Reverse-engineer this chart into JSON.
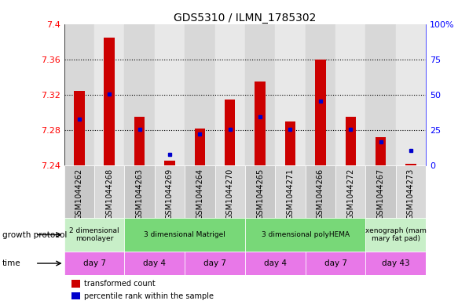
{
  "title": "GDS5310 / ILMN_1785302",
  "samples": [
    "GSM1044262",
    "GSM1044268",
    "GSM1044263",
    "GSM1044269",
    "GSM1044264",
    "GSM1044270",
    "GSM1044265",
    "GSM1044271",
    "GSM1044266",
    "GSM1044272",
    "GSM1044267",
    "GSM1044273"
  ],
  "red_values": [
    7.325,
    7.385,
    7.295,
    7.245,
    7.282,
    7.315,
    7.335,
    7.29,
    7.36,
    7.295,
    7.272,
    7.242
  ],
  "blue_values": [
    7.293,
    7.321,
    7.281,
    7.253,
    7.276,
    7.281,
    7.295,
    7.281,
    7.313,
    7.281,
    7.267,
    7.257
  ],
  "ymin": 7.24,
  "ymax": 7.4,
  "yticks_left": [
    7.24,
    7.28,
    7.32,
    7.36,
    7.4
  ],
  "ytick_labels_left": [
    "7.24",
    "7.28",
    "7.32",
    "7.36",
    "7.4"
  ],
  "right_yticks_pct": [
    0,
    25,
    50,
    75,
    100
  ],
  "right_ytick_labels": [
    "0",
    "25",
    "50",
    "75",
    "100%"
  ],
  "grid_values": [
    7.28,
    7.32,
    7.36
  ],
  "growth_protocol_groups": [
    {
      "label": "2 dimensional\nmonolayer",
      "start": 0,
      "end": 2,
      "color": "#c8efc8"
    },
    {
      "label": "3 dimensional Matrigel",
      "start": 2,
      "end": 6,
      "color": "#78d878"
    },
    {
      "label": "3 dimensional polyHEMA",
      "start": 6,
      "end": 10,
      "color": "#78d878"
    },
    {
      "label": "xenograph (mam\nmary fat pad)",
      "start": 10,
      "end": 12,
      "color": "#c8efc8"
    }
  ],
  "time_groups": [
    {
      "label": "day 7",
      "start": 0,
      "end": 2,
      "color": "#e878e8"
    },
    {
      "label": "day 4",
      "start": 2,
      "end": 4,
      "color": "#e878e8"
    },
    {
      "label": "day 7",
      "start": 4,
      "end": 6,
      "color": "#e878e8"
    },
    {
      "label": "day 4",
      "start": 6,
      "end": 8,
      "color": "#e878e8"
    },
    {
      "label": "day 7",
      "start": 8,
      "end": 10,
      "color": "#e878e8"
    },
    {
      "label": "day 43",
      "start": 10,
      "end": 12,
      "color": "#e878e8"
    }
  ],
  "bar_color": "#cc0000",
  "dot_color": "#0000cc",
  "growth_label": "growth protocol",
  "time_label": "time",
  "legend_red": "transformed count",
  "legend_blue": "percentile rank within the sample",
  "bar_width": 0.35,
  "title_fontsize": 10,
  "tick_fontsize": 8,
  "xticklabel_fontsize": 7,
  "label_fontsize": 8,
  "col_bg_even": "#d8d8d8",
  "col_bg_odd": "#e8e8e8",
  "col_bg_xlabel_even": "#c8c8c8",
  "col_bg_xlabel_odd": "#d8d8d8"
}
